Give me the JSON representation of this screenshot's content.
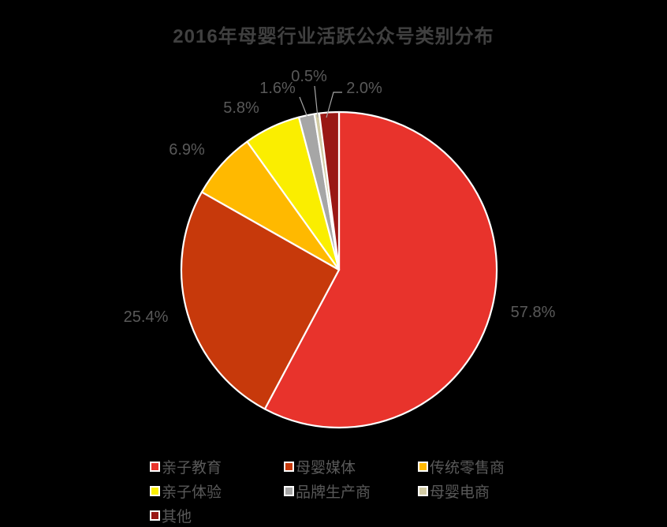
{
  "chart_data": {
    "type": "pie",
    "title": "2016年母婴行业活跃公众号类别分布",
    "start_angle_deg": 0,
    "direction": "clockwise",
    "legend_position": "bottom",
    "background": "#000000",
    "title_color": "#404040",
    "label_color": "#595959",
    "leader_line_color": "#A6A6A6",
    "slice_border_color": "#FFFFFF",
    "slices": [
      {
        "label": "亲子教育",
        "value": 57.8,
        "data_label": "57.8%",
        "color": "#E8332C"
      },
      {
        "label": "母婴媒体",
        "value": 25.4,
        "data_label": "25.4%",
        "color": "#C7390B"
      },
      {
        "label": "传统零售商",
        "value": 6.9,
        "data_label": "6.9%",
        "color": "#FFB900"
      },
      {
        "label": "亲子体验",
        "value": 5.8,
        "data_label": "5.8%",
        "color": "#FAEE00"
      },
      {
        "label": "品牌生产商",
        "value": 1.6,
        "data_label": "1.6%",
        "color": "#A6A6A6"
      },
      {
        "label": "母婴电商",
        "value": 0.5,
        "data_label": "0.5%",
        "color": "#D2CBA4"
      },
      {
        "label": "其他",
        "value": 2.0,
        "data_label": "2.0%",
        "color": "#9A1815"
      }
    ]
  }
}
